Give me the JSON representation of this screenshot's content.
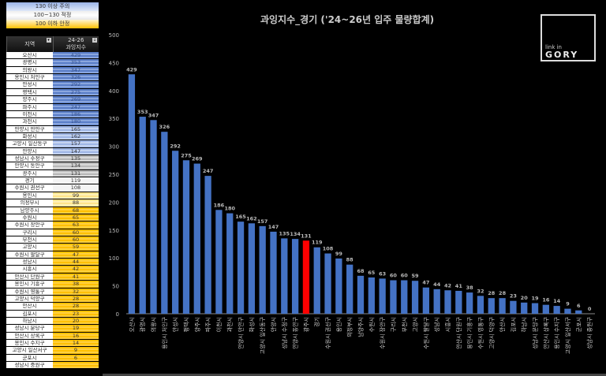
{
  "legend": {
    "items": [
      "130 이상 주의",
      "100~130 적정",
      "100 이하 안정"
    ]
  },
  "table": {
    "col_region": "지역",
    "col_value_top": "24-26",
    "col_value_bottom": "과잉지수",
    "rows": [
      [
        "오산시",
        "429"
      ],
      [
        "광명시",
        "353"
      ],
      [
        "의왕시",
        "347"
      ],
      [
        "용인시 처인구",
        "326"
      ],
      [
        "안성시",
        "292"
      ],
      [
        "평택시",
        "275"
      ],
      [
        "양주시",
        "269"
      ],
      [
        "파주시",
        "247"
      ],
      [
        "이천시",
        "186"
      ],
      [
        "과천시",
        "180"
      ],
      [
        "안양시 만안구",
        "165"
      ],
      [
        "화성시",
        "162"
      ],
      [
        "고양시 일산동구",
        "157"
      ],
      [
        "안양시",
        "147"
      ],
      [
        "성남시 수정구",
        "135"
      ],
      [
        "안양시 동안구",
        "134"
      ],
      [
        "광주시",
        "131"
      ],
      [
        "경기",
        "119"
      ],
      [
        "수원시 권선구",
        "108"
      ],
      [
        "용인시",
        "99"
      ],
      [
        "의정부시",
        "88"
      ],
      [
        "남양주시",
        "68"
      ],
      [
        "수원시",
        "65"
      ],
      [
        "수원시 장안구",
        "63"
      ],
      [
        "구리시",
        "60"
      ],
      [
        "부천시",
        "60"
      ],
      [
        "고양시",
        "59"
      ],
      [
        "수원시 팔달구",
        "47"
      ],
      [
        "성남시",
        "44"
      ],
      [
        "시흥시",
        "42"
      ],
      [
        "안산시 단원구",
        "41"
      ],
      [
        "용인시 기흥구",
        "38"
      ],
      [
        "수원시 영통구",
        "32"
      ],
      [
        "고양시 덕양구",
        "28"
      ],
      [
        "안산시",
        "28"
      ],
      [
        "김포시",
        "23"
      ],
      [
        "하남시",
        "20"
      ],
      [
        "성남시 분당구",
        "19"
      ],
      [
        "안산시 상록구",
        "16"
      ],
      [
        "용인시 수지구",
        "14"
      ],
      [
        "고양시 일산서구",
        "9"
      ],
      [
        "군포시",
        "6"
      ],
      [
        "성남시 중원구",
        ""
      ]
    ]
  },
  "logo": {
    "line1": "link in",
    "line2": "GORY"
  },
  "colors": {
    "bar": "#4472c4",
    "highlight": "#ff0000"
  },
  "chart_data": {
    "type": "bar",
    "title": "과잉지수_경기 ('24~26년 입주 물량합계)",
    "categories": [
      "오산시",
      "광명시",
      "의왕시",
      "용인시 처인구",
      "안성시",
      "평택시",
      "양주시",
      "파주시",
      "이천시",
      "과천시",
      "안양시 만안구",
      "화성시",
      "고양시 일산동구",
      "안양시",
      "성남시 수정구",
      "안양시 동안구",
      "광주시",
      "경기",
      "수원시 권선구",
      "용인시",
      "의정부시",
      "남양주시",
      "수원시",
      "수원시 장안구",
      "구리시",
      "부천시",
      "고양시",
      "수원시 팔달구",
      "성남시",
      "시흥시",
      "안산시 단원구",
      "용인시 기흥구",
      "수원시 영통구",
      "고양시 덕양구",
      "안산시",
      "김포시",
      "하남시",
      "성남시 분당구",
      "안산시 상록구",
      "용인시 수지구",
      "고양시 일산서구",
      "군포시",
      "성남시 중원구"
    ],
    "values": [
      429,
      353,
      347,
      326,
      292,
      275,
      269,
      247,
      186,
      180,
      165,
      162,
      157,
      147,
      135,
      134,
      131,
      119,
      108,
      99,
      88,
      68,
      65,
      63,
      60,
      60,
      59,
      47,
      44,
      42,
      41,
      38,
      32,
      28,
      28,
      23,
      20,
      19,
      16,
      14,
      9,
      6,
      0
    ],
    "highlight": "광주시",
    "ylim": [
      0,
      500
    ],
    "yticks": [
      0,
      50,
      100,
      150,
      200,
      250,
      300,
      350,
      400,
      450,
      500
    ],
    "grid": false,
    "legend": "none"
  }
}
